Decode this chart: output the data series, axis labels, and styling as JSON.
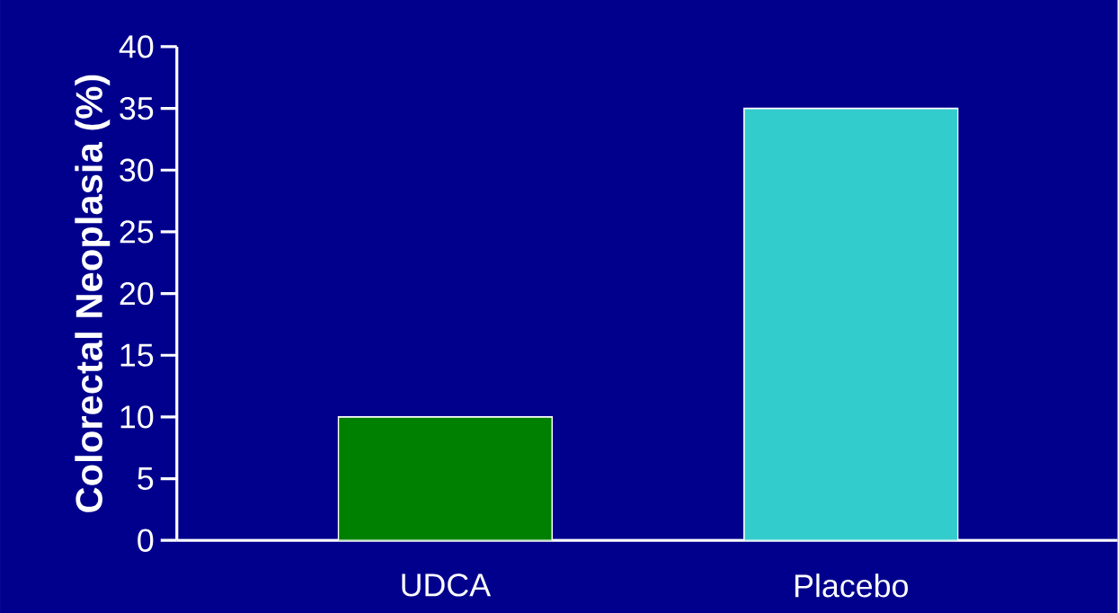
{
  "chart_data": {
    "type": "bar",
    "ylabel": "Colorectal Neoplasia (%)",
    "categories": [
      "UDCA",
      "Placebo"
    ],
    "values": [
      10,
      35
    ],
    "colors": [
      "#008000",
      "#33cccc"
    ],
    "ylim": [
      0,
      40
    ],
    "yticks": [
      0,
      5,
      10,
      15,
      20,
      25,
      30,
      35,
      40
    ]
  }
}
